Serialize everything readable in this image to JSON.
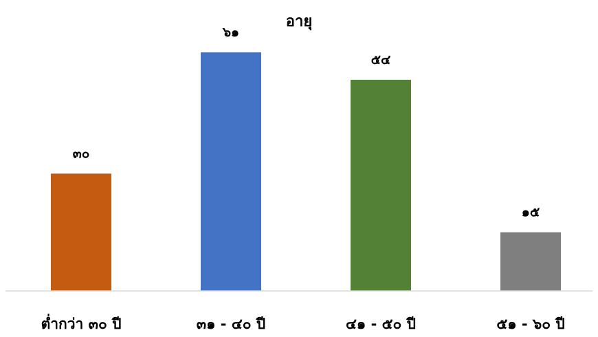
{
  "chart_data": {
    "type": "bar",
    "title": "อายุ",
    "xlabel": "",
    "ylabel": "",
    "categories": [
      "ต่ำกว่า ๓๐ ปี",
      "๓๑ - ๔๐ ปี",
      "๔๑ - ๕๐ ปี",
      "๕๑ - ๖๐ ปี"
    ],
    "values": [
      30,
      61,
      54,
      15
    ],
    "data_labels": [
      "๓๐",
      "๖๑",
      "๕๔",
      "๑๕"
    ],
    "colors": [
      "#C55A11",
      "#4472C4",
      "#538135",
      "#7F7F7F"
    ],
    "ylim": [
      0,
      70
    ],
    "grid": false,
    "legend": "none"
  }
}
